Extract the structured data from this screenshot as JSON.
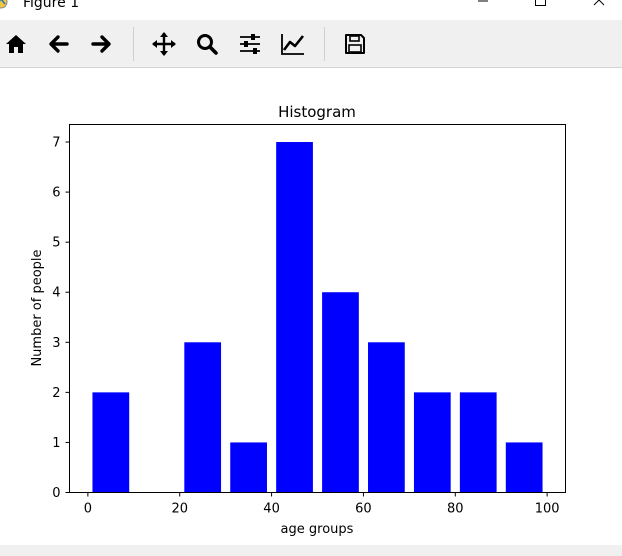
{
  "window": {
    "title": "Figure 1"
  },
  "toolbar": {
    "buttons": [
      {
        "id": "home",
        "icon": "home-icon"
      },
      {
        "id": "back",
        "icon": "arrow-left-icon"
      },
      {
        "id": "forward",
        "icon": "arrow-right-icon"
      },
      {
        "id": "pan",
        "icon": "move-icon"
      },
      {
        "id": "zoom",
        "icon": "magnifier-icon"
      },
      {
        "id": "configure",
        "icon": "sliders-icon"
      },
      {
        "id": "edit",
        "icon": "line-chart-icon"
      },
      {
        "id": "save",
        "icon": "floppy-disk-icon"
      }
    ]
  },
  "colors": {
    "bar": "#0000ff",
    "toolbar_bg": "#f0f0f0"
  },
  "chart_data": {
    "type": "bar",
    "title": "Histogram",
    "xlabel": "age groups",
    "ylabel": "Number of people",
    "x": [
      5,
      15,
      25,
      35,
      45,
      55,
      65,
      75,
      85,
      95
    ],
    "values": [
      2,
      0,
      3,
      1,
      7,
      4,
      3,
      2,
      2,
      1
    ],
    "bar_width": 8,
    "xlim": [
      -4,
      104
    ],
    "ylim": [
      0,
      7.35
    ],
    "xticks": [
      0,
      20,
      40,
      60,
      80,
      100
    ],
    "yticks": [
      0,
      1,
      2,
      3,
      4,
      5,
      6,
      7
    ],
    "xtick_labels": [
      "0",
      "20",
      "40",
      "60",
      "80",
      "100"
    ],
    "ytick_labels": [
      "0",
      "1",
      "2",
      "3",
      "4",
      "5",
      "6",
      "7"
    ],
    "grid": false
  }
}
